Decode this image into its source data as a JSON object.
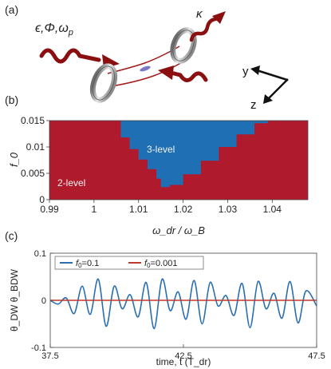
{
  "panels": {
    "a": {
      "label": "(a)",
      "params": "ϵ,Φ,ω",
      "params_sub": "p",
      "kappa": "κ",
      "axis_y": "y",
      "axis_z": "z"
    },
    "b": {
      "label": "(b)"
    },
    "c": {
      "label": "(c)"
    }
  },
  "chart_data": [
    {
      "panel": "b",
      "type": "heatmap",
      "title": "",
      "xlabel": "ω_dr / ω_B",
      "ylabel": "f_0",
      "xlim": [
        0.99,
        1.048
      ],
      "ylim": [
        0,
        0.015
      ],
      "xticks": [
        "0.99",
        "1",
        "1.01",
        "1.02",
        "1.03",
        "1.04"
      ],
      "yticks": [
        "0",
        "0.005",
        "0.01",
        "0.015"
      ],
      "regions": [
        {
          "name": "2-level",
          "color": "#b01a2d"
        },
        {
          "name": "3-level",
          "color": "#1f6fb5"
        }
      ],
      "three_level_boundary": {
        "x": [
          1.004,
          1.006,
          1.008,
          1.01,
          1.012,
          1.014,
          1.015,
          1.017,
          1.02,
          1.024,
          1.028,
          1.032,
          1.036,
          1.039
        ],
        "f0_min": [
          0.015,
          0.0118,
          0.0096,
          0.0076,
          0.0058,
          0.004,
          0.0024,
          0.0028,
          0.0048,
          0.0074,
          0.01,
          0.0124,
          0.0145,
          0.015
        ]
      }
    },
    {
      "panel": "c",
      "type": "line",
      "title": "",
      "xlabel": "time, t  (T_dr)",
      "ylabel": "θ_DW θ_BDW",
      "xlim": [
        37.5,
        47.5
      ],
      "ylim": [
        -0.1,
        0.1
      ],
      "xticks": [
        "37.5",
        "42.5",
        "47.5"
      ],
      "yticks": [
        "0.1",
        "0",
        "-0.1"
      ],
      "series": [
        {
          "name": "f_0=0.1",
          "color": "#2a6fb0",
          "t": [
            37.5,
            37.8,
            38.1,
            38.4,
            38.7,
            39.0,
            39.3,
            39.6,
            39.9,
            40.2,
            40.5,
            40.8,
            41.1,
            41.4,
            41.7,
            42.0,
            42.3,
            42.6,
            42.9,
            43.2,
            43.5,
            43.8,
            44.1,
            44.4,
            44.7,
            45.0,
            45.3,
            45.6,
            45.9,
            46.2,
            46.5,
            46.8,
            47.1,
            47.5
          ],
          "v": [
            0.0,
            -0.008,
            0.005,
            -0.028,
            0.03,
            -0.03,
            0.045,
            -0.055,
            0.03,
            -0.018,
            0.012,
            -0.035,
            0.038,
            -0.06,
            0.045,
            -0.022,
            0.018,
            -0.04,
            0.042,
            -0.05,
            0.038,
            -0.012,
            0.01,
            -0.032,
            0.036,
            -0.058,
            0.04,
            -0.018,
            0.015,
            -0.038,
            0.04,
            -0.048,
            0.02,
            -0.012
          ]
        },
        {
          "name": "f_0=0.001",
          "color": "#c0392b",
          "t": [
            37.5,
            47.5
          ],
          "v": [
            0.0,
            0.0
          ]
        }
      ],
      "legend": "top-left",
      "legend_entries": [
        {
          "prefix": "f",
          "sub": "0",
          "suffix": "=0.1"
        },
        {
          "prefix": "f",
          "sub": "0",
          "suffix": "=0.001"
        }
      ]
    }
  ]
}
